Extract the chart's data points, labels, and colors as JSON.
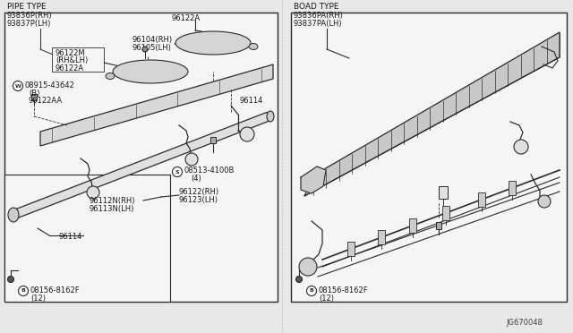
{
  "bg_color": "#e8e8e8",
  "panel_bg": "#ffffff",
  "line_color": "#2a2a2a",
  "text_color": "#1a1a1a",
  "figsize": [
    6.4,
    3.72
  ],
  "dpi": 100,
  "left_title": [
    "PIPE TYPE",
    "93836P(RH)",
    "93837P(LH)"
  ],
  "right_title": [
    "BOAD TYPE",
    "93836PA(RH)",
    "93837PA(LH)"
  ],
  "bottom_left_label": [
    "B",
    "08156-8162F",
    "(12)"
  ],
  "bottom_right_label": [
    "B",
    "08156-8162F",
    "(12)"
  ],
  "diagram_id": "JG670048"
}
